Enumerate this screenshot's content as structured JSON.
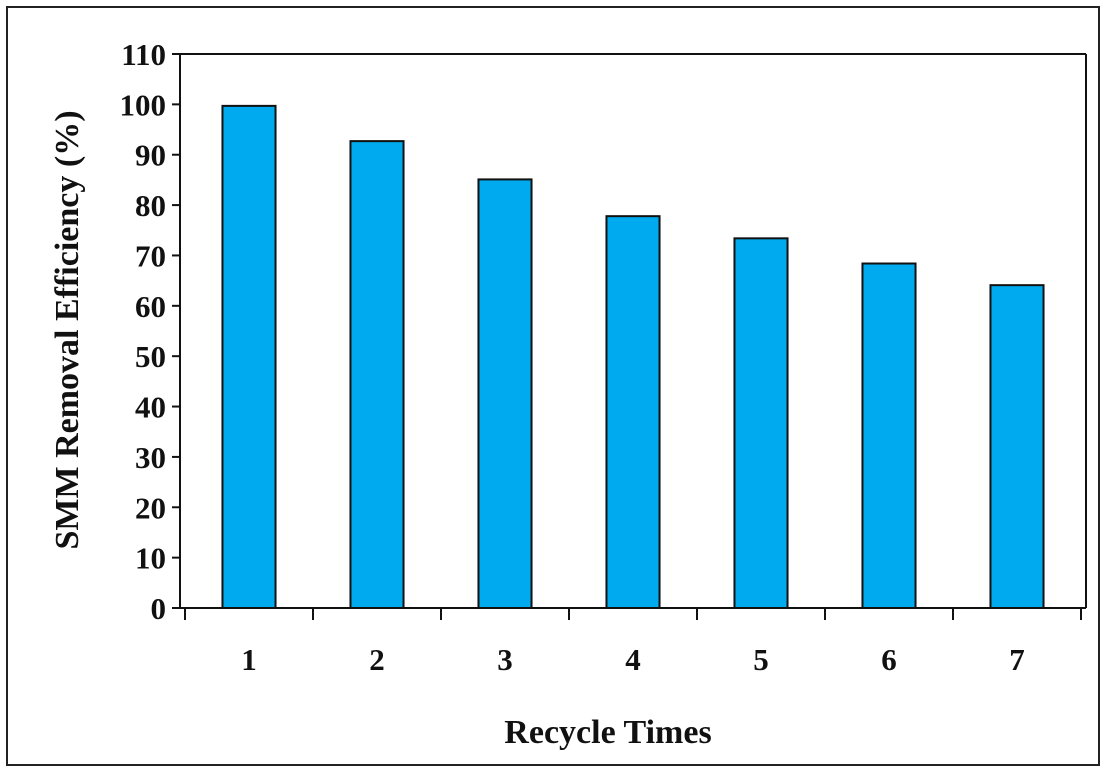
{
  "colors": {
    "bar_fill": "#00aaee",
    "bar_stroke": "#111111",
    "axis": "#111111",
    "frame": "#222222"
  },
  "chart_data": {
    "type": "bar",
    "categories": [
      "1",
      "2",
      "3",
      "4",
      "5",
      "6",
      "7"
    ],
    "values": [
      99.7,
      92.7,
      85.1,
      77.8,
      73.4,
      68.4,
      64.1
    ],
    "xlabel": "Recycle Times",
    "ylabel": "SMM Removal Efficiency (%)",
    "ylim": [
      0,
      110
    ],
    "yticks": [
      0,
      10,
      20,
      30,
      40,
      50,
      60,
      70,
      80,
      90,
      100,
      110
    ],
    "grid": false,
    "legend": "none"
  }
}
